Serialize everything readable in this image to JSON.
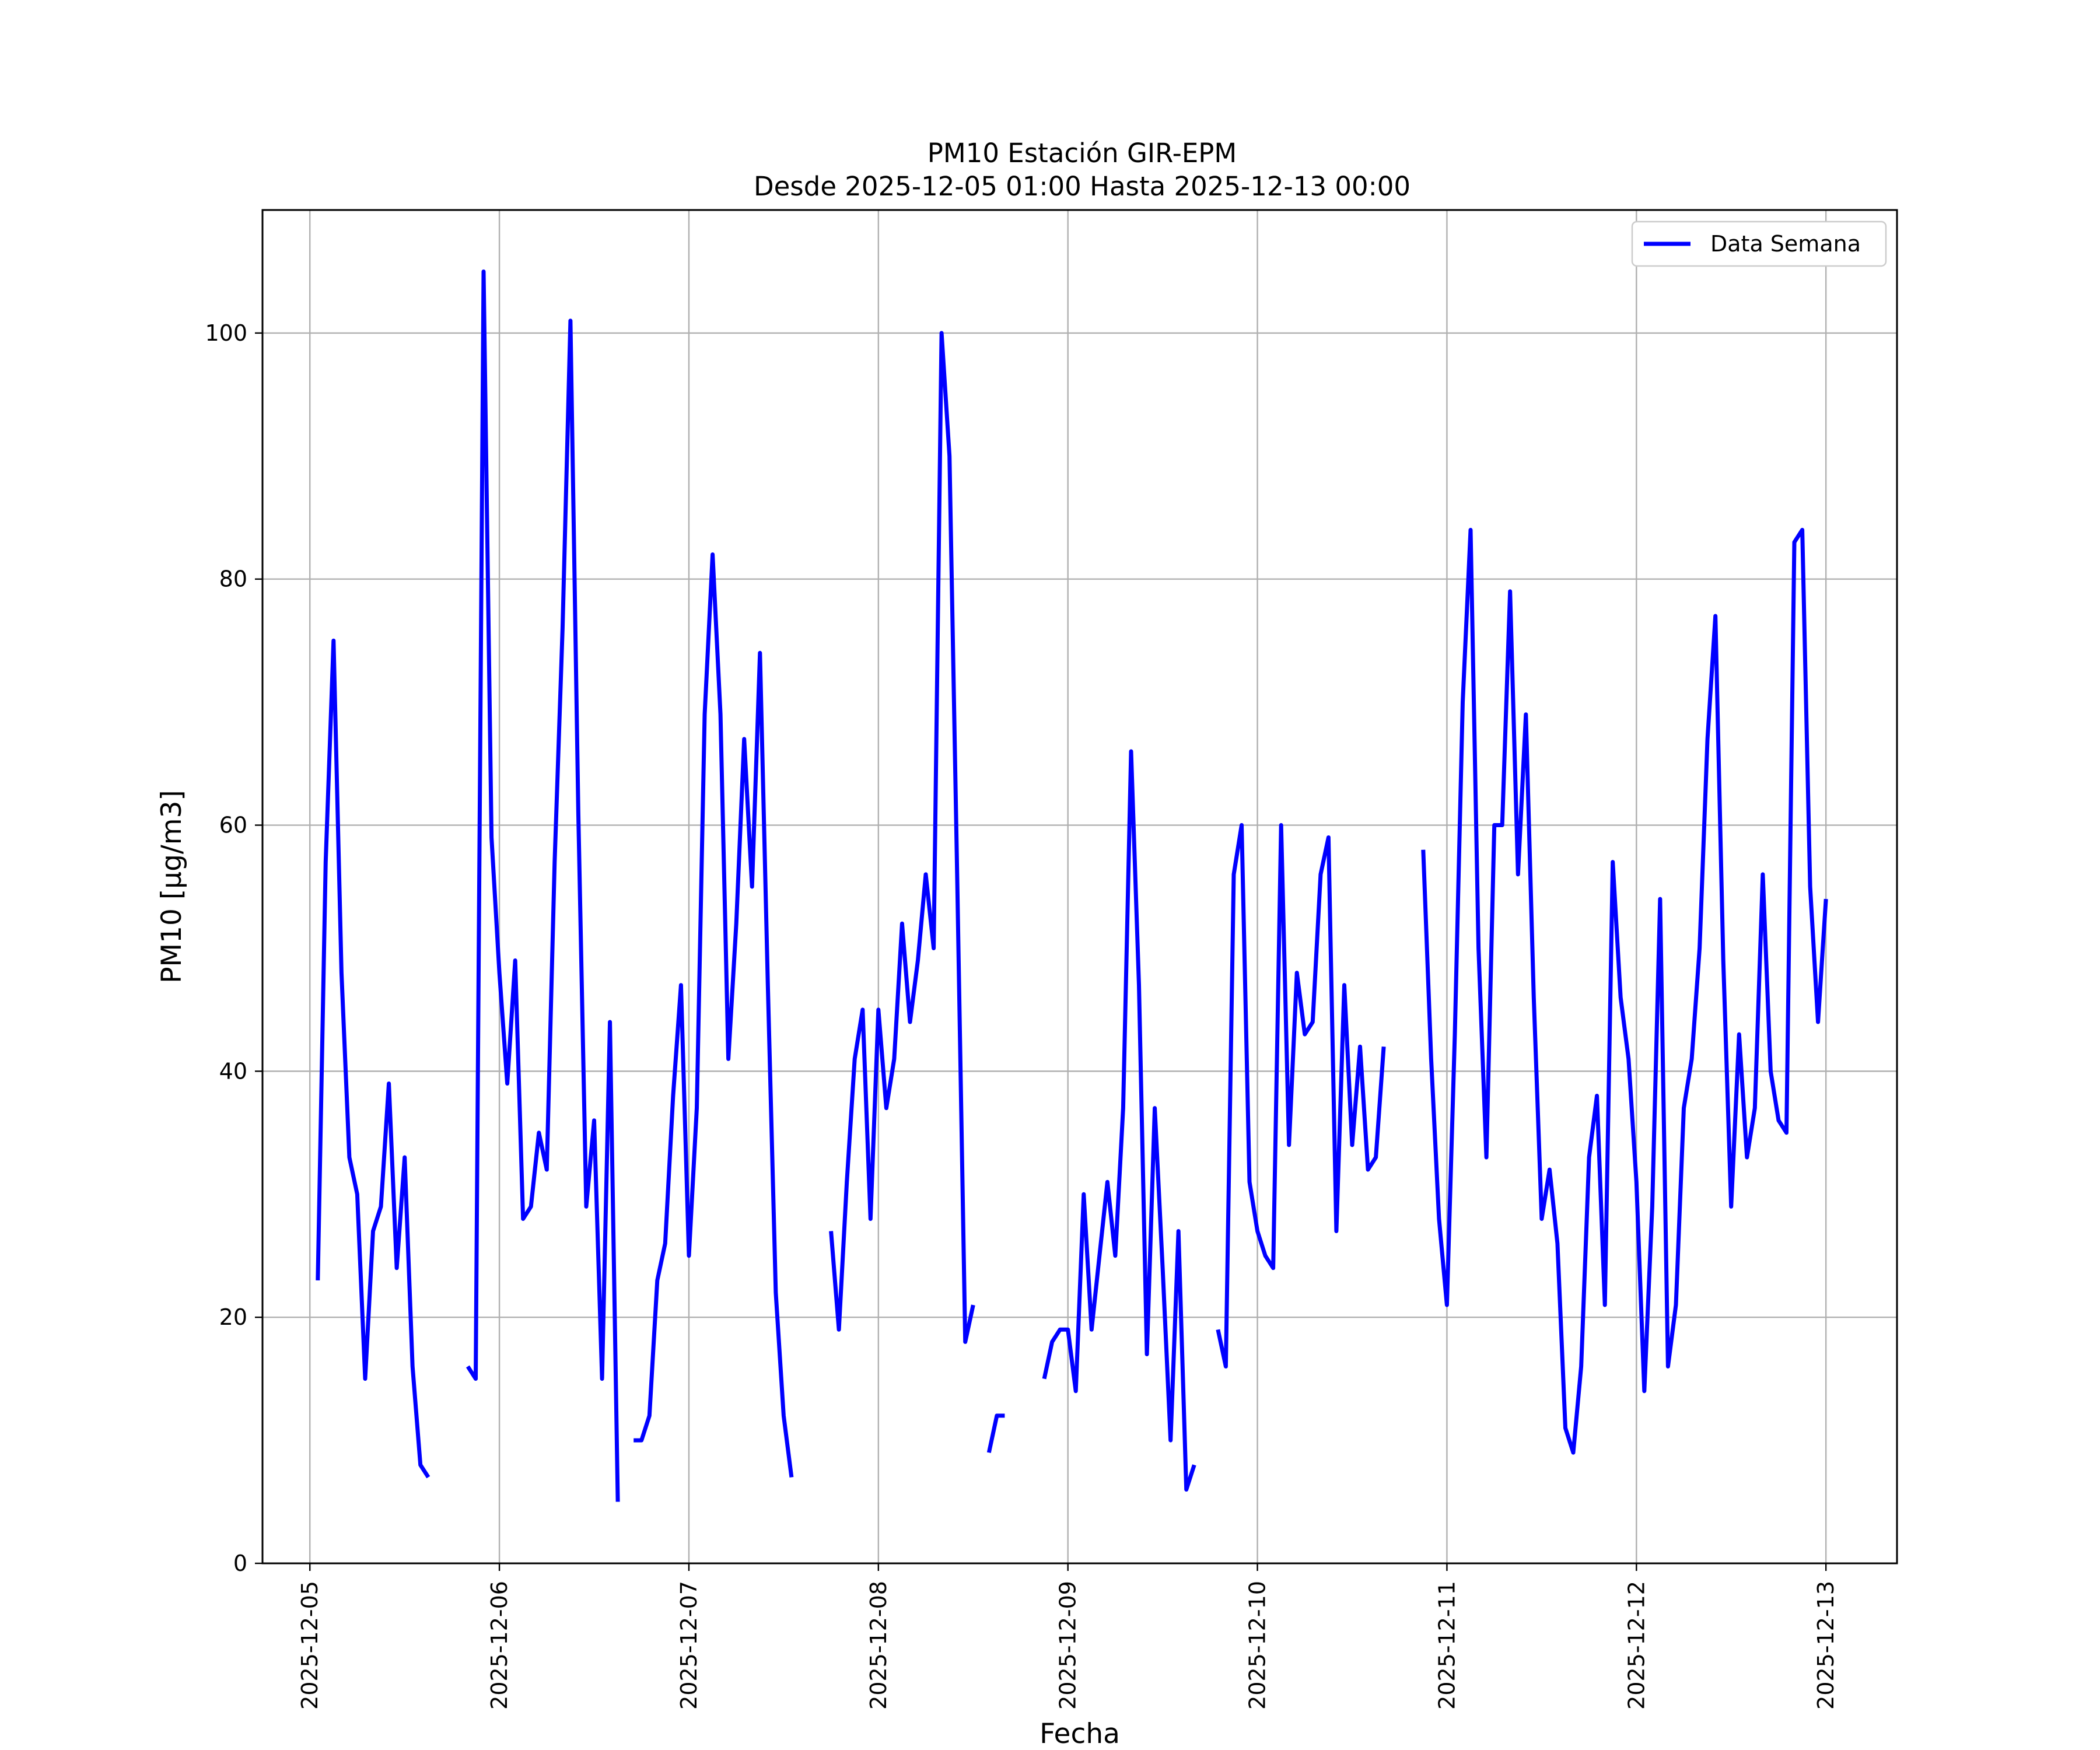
{
  "chart_data": {
    "type": "line",
    "title": "PM10 Estación GIR-EPM",
    "subtitle": "Desde 2025-12-05 01:00 Hasta 2025-12-13 00:00",
    "xlabel": "Fecha",
    "ylabel": "PM10 [μg/m3]",
    "xlim": [
      "2025-12-04 18:00",
      "2025-12-13 09:00"
    ],
    "ylim": [
      0,
      110
    ],
    "x_ticks": [
      "2025-12-05",
      "2025-12-06",
      "2025-12-07",
      "2025-12-08",
      "2025-12-09",
      "2025-12-10",
      "2025-12-11",
      "2025-12-12",
      "2025-12-13"
    ],
    "y_ticks": [
      0,
      20,
      40,
      60,
      80,
      100
    ],
    "grid": true,
    "legend_position": "top-right",
    "series_color": "#0000ff",
    "series": [
      {
        "name": "Data Semana",
        "points": [
          [
            "2025-12-05 01:00",
            23
          ],
          [
            "2025-12-05 02:00",
            57
          ],
          [
            "2025-12-05 03:00",
            75
          ],
          [
            "2025-12-05 04:00",
            48
          ],
          [
            "2025-12-05 05:00",
            33
          ],
          [
            "2025-12-05 06:00",
            30
          ],
          [
            "2025-12-05 07:00",
            15
          ],
          [
            "2025-12-05 08:00",
            27
          ],
          [
            "2025-12-05 09:00",
            29
          ],
          [
            "2025-12-05 10:00",
            39
          ],
          [
            "2025-12-05 11:00",
            24
          ],
          [
            "2025-12-05 12:00",
            33
          ],
          [
            "2025-12-05 13:00",
            16
          ],
          [
            "2025-12-05 14:00",
            8
          ],
          [
            "2025-12-05 15:00",
            7
          ],
          [
            "2025-12-05 16:00",
            null
          ],
          [
            "2025-12-05 17:00",
            null
          ],
          [
            "2025-12-05 18:00",
            null
          ],
          [
            "2025-12-05 19:00",
            null
          ],
          [
            "2025-12-05 20:00",
            16
          ],
          [
            "2025-12-05 21:00",
            15
          ],
          [
            "2025-12-05 22:00",
            105
          ],
          [
            "2025-12-05 23:00",
            59
          ],
          [
            "2025-12-06 00:00",
            48
          ],
          [
            "2025-12-06 01:00",
            39
          ],
          [
            "2025-12-06 02:00",
            49
          ],
          [
            "2025-12-06 03:00",
            28
          ],
          [
            "2025-12-06 04:00",
            29
          ],
          [
            "2025-12-06 05:00",
            35
          ],
          [
            "2025-12-06 06:00",
            32
          ],
          [
            "2025-12-06 07:00",
            57
          ],
          [
            "2025-12-06 08:00",
            76
          ],
          [
            "2025-12-06 09:00",
            101
          ],
          [
            "2025-12-06 10:00",
            61
          ],
          [
            "2025-12-06 11:00",
            29
          ],
          [
            "2025-12-06 12:00",
            36
          ],
          [
            "2025-12-06 13:00",
            15
          ],
          [
            "2025-12-06 14:00",
            44
          ],
          [
            "2025-12-06 15:00",
            5
          ],
          [
            "2025-12-06 16:00",
            null
          ],
          [
            "2025-12-06 17:00",
            10
          ],
          [
            "2025-12-06 18:00",
            10
          ],
          [
            "2025-12-06 19:00",
            12
          ],
          [
            "2025-12-06 20:00",
            23
          ],
          [
            "2025-12-06 21:00",
            26
          ],
          [
            "2025-12-06 22:00",
            38
          ],
          [
            "2025-12-06 23:00",
            47
          ],
          [
            "2025-12-07 00:00",
            25
          ],
          [
            "2025-12-07 01:00",
            37
          ],
          [
            "2025-12-07 02:00",
            69
          ],
          [
            "2025-12-07 03:00",
            82
          ],
          [
            "2025-12-07 04:00",
            69
          ],
          [
            "2025-12-07 05:00",
            41
          ],
          [
            "2025-12-07 06:00",
            52
          ],
          [
            "2025-12-07 07:00",
            67
          ],
          [
            "2025-12-07 08:00",
            55
          ],
          [
            "2025-12-07 09:00",
            74
          ],
          [
            "2025-12-07 10:00",
            47
          ],
          [
            "2025-12-07 11:00",
            22
          ],
          [
            "2025-12-07 12:00",
            12
          ],
          [
            "2025-12-07 13:00",
            7
          ],
          [
            "2025-12-07 14:00",
            null
          ],
          [
            "2025-12-07 15:00",
            null
          ],
          [
            "2025-12-07 16:00",
            null
          ],
          [
            "2025-12-07 17:00",
            null
          ],
          [
            "2025-12-07 18:00",
            27
          ],
          [
            "2025-12-07 19:00",
            19
          ],
          [
            "2025-12-07 20:00",
            31
          ],
          [
            "2025-12-07 21:00",
            41
          ],
          [
            "2025-12-07 22:00",
            45
          ],
          [
            "2025-12-07 23:00",
            28
          ],
          [
            "2025-12-08 00:00",
            45
          ],
          [
            "2025-12-08 01:00",
            37
          ],
          [
            "2025-12-08 02:00",
            41
          ],
          [
            "2025-12-08 03:00",
            52
          ],
          [
            "2025-12-08 04:00",
            44
          ],
          [
            "2025-12-08 05:00",
            49
          ],
          [
            "2025-12-08 06:00",
            56
          ],
          [
            "2025-12-08 07:00",
            50
          ],
          [
            "2025-12-08 08:00",
            100
          ],
          [
            "2025-12-08 09:00",
            90
          ],
          [
            "2025-12-08 10:00",
            55
          ],
          [
            "2025-12-08 11:00",
            18
          ],
          [
            "2025-12-08 12:00",
            21
          ],
          [
            "2025-12-08 13:00",
            null
          ],
          [
            "2025-12-08 14:00",
            9
          ],
          [
            "2025-12-08 15:00",
            12
          ],
          [
            "2025-12-08 16:00",
            12
          ],
          [
            "2025-12-08 17:00",
            null
          ],
          [
            "2025-12-08 18:00",
            null
          ],
          [
            "2025-12-08 19:00",
            null
          ],
          [
            "2025-12-08 21:00",
            15
          ],
          [
            "2025-12-08 22:00",
            18
          ],
          [
            "2025-12-08 23:00",
            19
          ],
          [
            "2025-12-09 00:00",
            19
          ],
          [
            "2025-12-09 01:00",
            14
          ],
          [
            "2025-12-09 02:00",
            30
          ],
          [
            "2025-12-09 03:00",
            19
          ],
          [
            "2025-12-09 04:00",
            25
          ],
          [
            "2025-12-09 05:00",
            31
          ],
          [
            "2025-12-09 06:00",
            25
          ],
          [
            "2025-12-09 07:00",
            37
          ],
          [
            "2025-12-09 08:00",
            66
          ],
          [
            "2025-12-09 09:00",
            47
          ],
          [
            "2025-12-09 10:00",
            17
          ],
          [
            "2025-12-09 11:00",
            37
          ],
          [
            "2025-12-09 12:00",
            24
          ],
          [
            "2025-12-09 13:00",
            10
          ],
          [
            "2025-12-09 14:00",
            27
          ],
          [
            "2025-12-09 15:00",
            6
          ],
          [
            "2025-12-09 16:00",
            8
          ],
          [
            "2025-12-09 17:00",
            null
          ],
          [
            "2025-12-09 18:00",
            null
          ],
          [
            "2025-12-09 19:00",
            19
          ],
          [
            "2025-12-09 20:00",
            16
          ],
          [
            "2025-12-09 21:00",
            56
          ],
          [
            "2025-12-09 22:00",
            60
          ],
          [
            "2025-12-09 23:00",
            31
          ],
          [
            "2025-12-10 00:00",
            27
          ],
          [
            "2025-12-10 01:00",
            25
          ],
          [
            "2025-12-10 02:00",
            24
          ],
          [
            "2025-12-10 03:00",
            60
          ],
          [
            "2025-12-10 04:00",
            34
          ],
          [
            "2025-12-10 05:00",
            48
          ],
          [
            "2025-12-10 06:00",
            43
          ],
          [
            "2025-12-10 07:00",
            44
          ],
          [
            "2025-12-10 08:00",
            56
          ],
          [
            "2025-12-10 09:00",
            59
          ],
          [
            "2025-12-10 10:00",
            27
          ],
          [
            "2025-12-10 11:00",
            47
          ],
          [
            "2025-12-10 12:00",
            34
          ],
          [
            "2025-12-10 13:00",
            42
          ],
          [
            "2025-12-10 14:00",
            32
          ],
          [
            "2025-12-10 15:00",
            33
          ],
          [
            "2025-12-10 16:00",
            42
          ],
          [
            "2025-12-10 17:00",
            null
          ],
          [
            "2025-12-10 18:00",
            null
          ],
          [
            "2025-12-10 19:00",
            null
          ],
          [
            "2025-12-10 20:00",
            null
          ],
          [
            "2025-12-10 21:00",
            58
          ],
          [
            "2025-12-10 22:00",
            41
          ],
          [
            "2025-12-10 23:00",
            28
          ],
          [
            "2025-12-11 00:00",
            21
          ],
          [
            "2025-12-11 01:00",
            43
          ],
          [
            "2025-12-11 02:00",
            70
          ],
          [
            "2025-12-11 03:00",
            84
          ],
          [
            "2025-12-11 04:00",
            50
          ],
          [
            "2025-12-11 05:00",
            33
          ],
          [
            "2025-12-11 06:00",
            60
          ],
          [
            "2025-12-11 07:00",
            60
          ],
          [
            "2025-12-11 08:00",
            79
          ],
          [
            "2025-12-11 09:00",
            56
          ],
          [
            "2025-12-11 10:00",
            69
          ],
          [
            "2025-12-11 11:00",
            46
          ],
          [
            "2025-12-11 12:00",
            28
          ],
          [
            "2025-12-11 13:00",
            32
          ],
          [
            "2025-12-11 14:00",
            26
          ],
          [
            "2025-12-11 15:00",
            11
          ],
          [
            "2025-12-11 16:00",
            9
          ],
          [
            "2025-12-11 17:00",
            16
          ],
          [
            "2025-12-11 18:00",
            33
          ],
          [
            "2025-12-11 19:00",
            38
          ],
          [
            "2025-12-11 20:00",
            21
          ],
          [
            "2025-12-11 21:00",
            57
          ],
          [
            "2025-12-11 22:00",
            46
          ],
          [
            "2025-12-11 23:00",
            41
          ],
          [
            "2025-12-12 00:00",
            31
          ],
          [
            "2025-12-12 01:00",
            14
          ],
          [
            "2025-12-12 02:00",
            29
          ],
          [
            "2025-12-12 03:00",
            54
          ],
          [
            "2025-12-12 04:00",
            16
          ],
          [
            "2025-12-12 05:00",
            21
          ],
          [
            "2025-12-12 06:00",
            37
          ],
          [
            "2025-12-12 07:00",
            41
          ],
          [
            "2025-12-12 08:00",
            50
          ],
          [
            "2025-12-12 09:00",
            67
          ],
          [
            "2025-12-12 10:00",
            77
          ],
          [
            "2025-12-12 11:00",
            49
          ],
          [
            "2025-12-12 12:00",
            29
          ],
          [
            "2025-12-12 13:00",
            43
          ],
          [
            "2025-12-12 14:00",
            33
          ],
          [
            "2025-12-12 15:00",
            37
          ],
          [
            "2025-12-12 16:00",
            56
          ],
          [
            "2025-12-12 17:00",
            40
          ],
          [
            "2025-12-12 18:00",
            36
          ],
          [
            "2025-12-12 19:00",
            35
          ],
          [
            "2025-12-12 20:00",
            83
          ],
          [
            "2025-12-12 21:00",
            84
          ],
          [
            "2025-12-12 22:00",
            55
          ],
          [
            "2025-12-12 23:00",
            44
          ],
          [
            "2025-12-13 00:00",
            54
          ]
        ]
      }
    ]
  }
}
